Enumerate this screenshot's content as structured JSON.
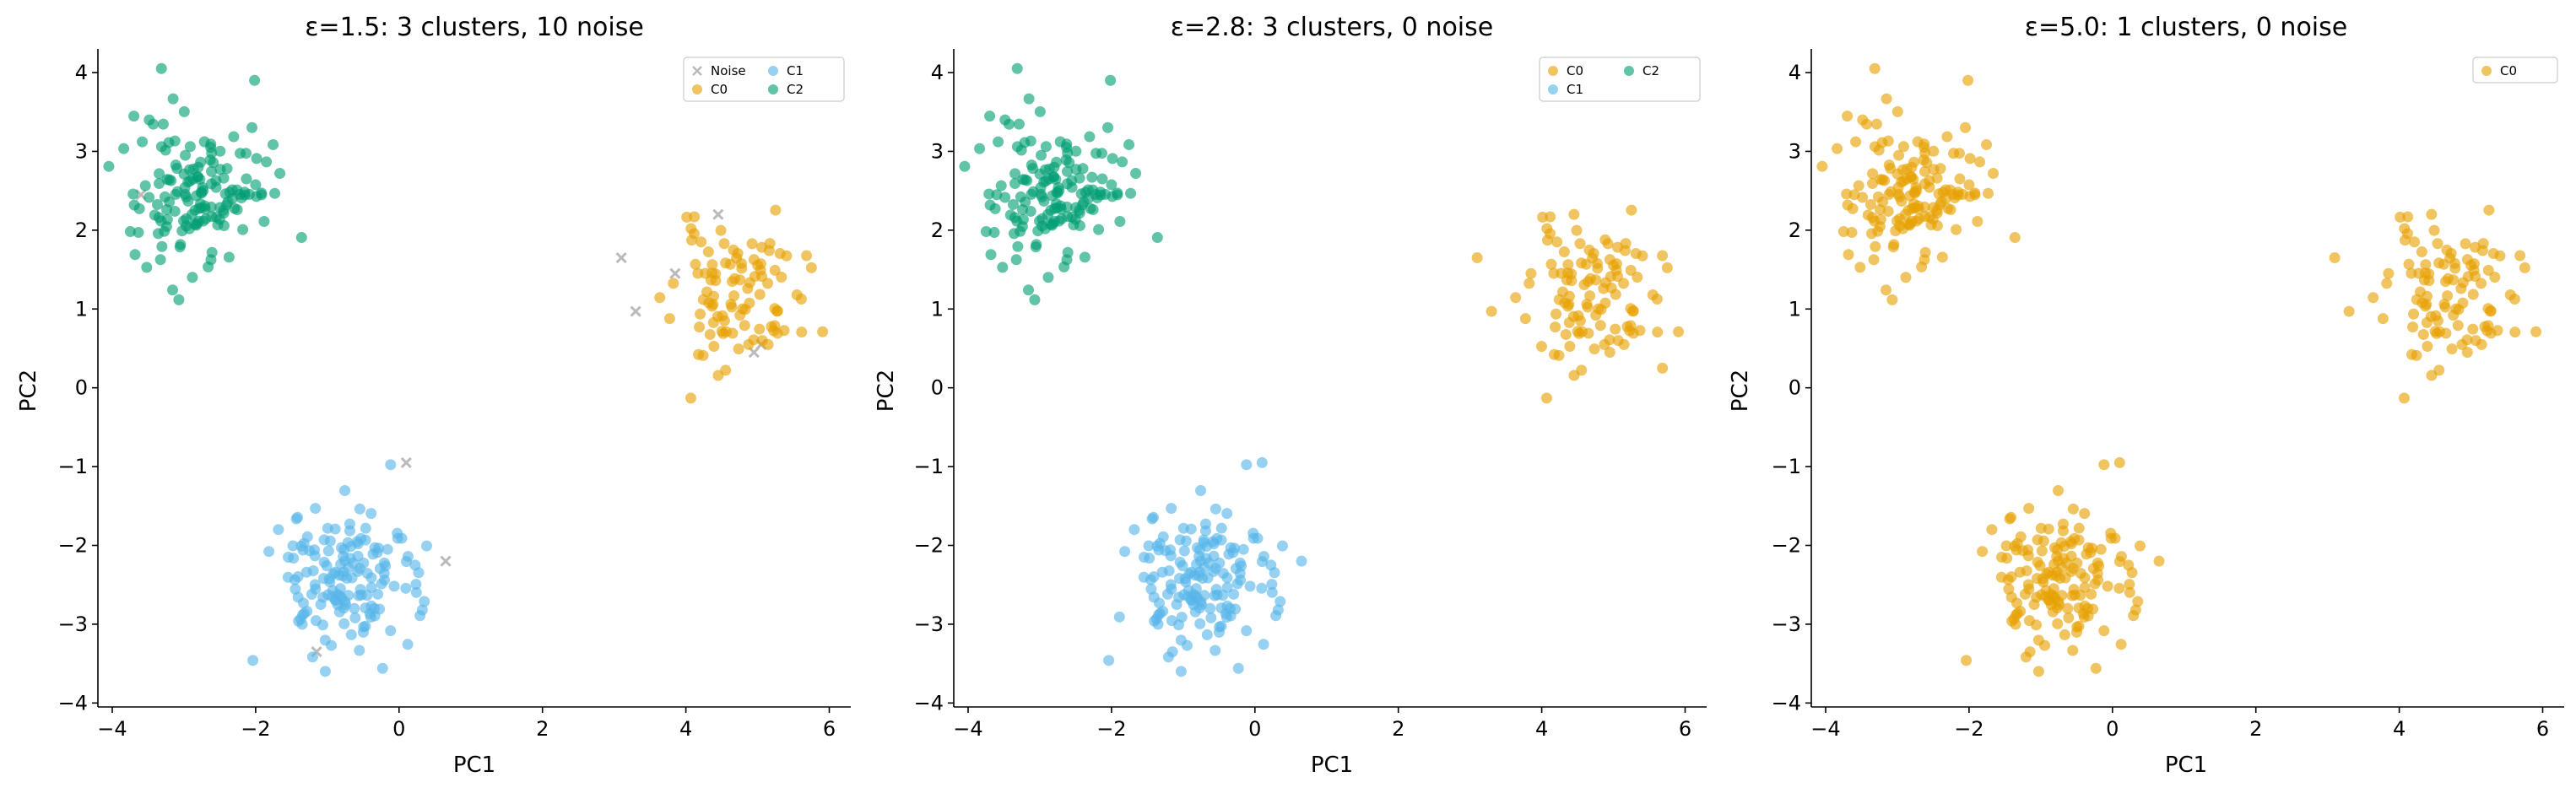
{
  "chart_data": [
    {
      "type": "scatter",
      "title": "ε=1.5: 3 clusters, 10 noise",
      "xlabel": "PC1",
      "ylabel": "PC2",
      "xlim": [
        -4.2,
        6.3
      ],
      "ylim": [
        -4.05,
        4.3
      ],
      "xticks": [
        -4,
        -2,
        0,
        2,
        4,
        6
      ],
      "yticks": [
        -4,
        -3,
        -2,
        -1,
        0,
        1,
        2,
        3,
        4
      ],
      "xtick_labels": [
        "−4",
        "−2",
        "0",
        "2",
        "4",
        "6"
      ],
      "ytick_labels": [
        "−4",
        "−3",
        "−2",
        "−1",
        "0",
        "1",
        "2",
        "3",
        "4"
      ],
      "grid": false,
      "legend": {
        "placement": "top-right",
        "columns": 2,
        "entries": [
          "Noise",
          "C0",
          "C1",
          "C2"
        ]
      },
      "series": [
        {
          "name": "Noise",
          "marker": "x",
          "color": "#bbbbbb",
          "points": [
            [
              -3.6,
              2.45
            ],
            [
              4.45,
              2.2
            ],
            [
              3.1,
              1.65
            ],
            [
              3.85,
              1.45
            ],
            [
              3.3,
              0.97
            ],
            [
              4.95,
              0.45
            ],
            [
              5.05,
              0.55
            ],
            [
              0.1,
              -0.95
            ],
            [
              0.65,
              -2.2
            ],
            [
              -1.15,
              -3.35
            ]
          ]
        },
        {
          "name": "C0",
          "marker": "o",
          "color": "#E69F00",
          "center": [
            4.7,
            1.15
          ],
          "spread": [
            0.45,
            0.45
          ],
          "count": 100,
          "seed": 11
        },
        {
          "name": "C1",
          "marker": "o",
          "color": "#56B4E9",
          "center": [
            -0.75,
            -2.45
          ],
          "spread": [
            0.5,
            0.45
          ],
          "count": 150,
          "seed": 23
        },
        {
          "name": "C2",
          "marker": "o",
          "color": "#009E73",
          "center": [
            -2.75,
            2.5
          ],
          "spread": [
            0.48,
            0.5
          ],
          "count": 150,
          "seed": 37
        }
      ]
    },
    {
      "type": "scatter",
      "title": "ε=2.8: 3 clusters, 0 noise",
      "xlabel": "PC1",
      "ylabel": "PC2",
      "xlim": [
        -4.2,
        6.3
      ],
      "ylim": [
        -4.05,
        4.3
      ],
      "xticks": [
        -4,
        -2,
        0,
        2,
        4,
        6
      ],
      "yticks": [
        -4,
        -3,
        -2,
        -1,
        0,
        1,
        2,
        3,
        4
      ],
      "xtick_labels": [
        "−4",
        "−2",
        "0",
        "2",
        "4",
        "6"
      ],
      "ytick_labels": [
        "−4",
        "−3",
        "−2",
        "−1",
        "0",
        "1",
        "2",
        "3",
        "4"
      ],
      "grid": false,
      "legend": {
        "placement": "top-right",
        "columns": 2,
        "entries": [
          "C0",
          "C1",
          "C2"
        ]
      },
      "series": [
        {
          "name": "C0",
          "marker": "o",
          "color": "#E69F00",
          "center": [
            4.7,
            1.15
          ],
          "spread": [
            0.45,
            0.45
          ],
          "count": 105,
          "seed": 11,
          "extra": [
            [
              3.1,
              1.65
            ],
            [
              3.85,
              1.45
            ],
            [
              3.3,
              0.97
            ],
            [
              4.95,
              0.45
            ],
            [
              4.45,
              2.2
            ]
          ]
        },
        {
          "name": "C1",
          "marker": "o",
          "color": "#56B4E9",
          "center": [
            -0.75,
            -2.45
          ],
          "spread": [
            0.5,
            0.45
          ],
          "count": 153,
          "seed": 23,
          "extra": [
            [
              0.1,
              -0.95
            ],
            [
              0.65,
              -2.2
            ],
            [
              -1.15,
              -3.35
            ]
          ]
        },
        {
          "name": "C2",
          "marker": "o",
          "color": "#009E73",
          "center": [
            -2.75,
            2.5
          ],
          "spread": [
            0.48,
            0.5
          ],
          "count": 151,
          "seed": 37,
          "extra": [
            [
              -3.6,
              2.45
            ]
          ]
        }
      ]
    },
    {
      "type": "scatter",
      "title": "ε=5.0: 1 clusters, 0 noise",
      "xlabel": "PC1",
      "ylabel": "PC2",
      "xlim": [
        -4.2,
        6.3
      ],
      "ylim": [
        -4.05,
        4.3
      ],
      "xticks": [
        -4,
        -2,
        0,
        2,
        4,
        6
      ],
      "yticks": [
        -4,
        -3,
        -2,
        -1,
        0,
        1,
        2,
        3,
        4
      ],
      "xtick_labels": [
        "−4",
        "−2",
        "0",
        "2",
        "4",
        "6"
      ],
      "ytick_labels": [
        "−4",
        "−3",
        "−2",
        "−1",
        "0",
        "1",
        "2",
        "3",
        "4"
      ],
      "grid": false,
      "legend": {
        "placement": "top-right",
        "columns": 1,
        "entries": [
          "C0"
        ]
      },
      "series": [
        {
          "name": "C0",
          "marker": "o",
          "color": "#E69F00",
          "center": [
            4.7,
            1.15
          ],
          "spread": [
            0.45,
            0.45
          ],
          "count": 100,
          "seed": 11,
          "extra": [
            [
              3.1,
              1.65
            ],
            [
              3.85,
              1.45
            ],
            [
              3.3,
              0.97
            ],
            [
              4.95,
              0.45
            ],
            [
              4.45,
              2.2
            ]
          ]
        },
        {
          "name": "C0",
          "marker": "o",
          "color": "#E69F00",
          "center": [
            -0.75,
            -2.45
          ],
          "spread": [
            0.5,
            0.45
          ],
          "count": 150,
          "seed": 23,
          "extra": [
            [
              0.1,
              -0.95
            ],
            [
              0.65,
              -2.2
            ],
            [
              -1.15,
              -3.35
            ]
          ]
        },
        {
          "name": "C0",
          "marker": "o",
          "color": "#E69F00",
          "center": [
            -2.75,
            2.5
          ],
          "spread": [
            0.48,
            0.5
          ],
          "count": 150,
          "seed": 37,
          "extra": [
            [
              -3.6,
              2.45
            ]
          ]
        }
      ]
    }
  ]
}
